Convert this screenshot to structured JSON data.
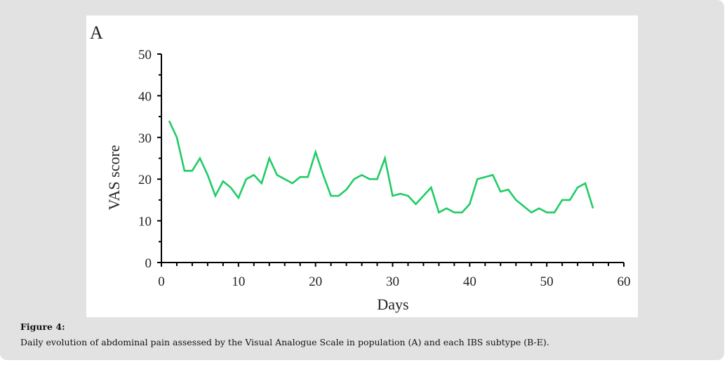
{
  "chart_data": {
    "type": "line",
    "panel_label": "A",
    "title": "",
    "xlabel": "Days",
    "ylabel": "VAS score",
    "xlim": [
      0,
      60
    ],
    "ylim": [
      0,
      50
    ],
    "xticks": [
      0,
      10,
      20,
      30,
      40,
      50,
      60
    ],
    "yticks": [
      0,
      10,
      20,
      30,
      40,
      50
    ],
    "x_minor_step": 2,
    "y_minor_step": 5,
    "grid": false,
    "line_color": "#1fcc66",
    "series": [
      {
        "name": "VAS score",
        "x": [
          1,
          2,
          3,
          4,
          5,
          6,
          7,
          8,
          9,
          10,
          11,
          12,
          13,
          14,
          15,
          16,
          17,
          18,
          19,
          20,
          21,
          22,
          23,
          24,
          25,
          26,
          27,
          28,
          29,
          30,
          31,
          32,
          33,
          34,
          35,
          36,
          37,
          38,
          39,
          40,
          41,
          42,
          43,
          44,
          45,
          46,
          47,
          48,
          49,
          50,
          51,
          52,
          53,
          54,
          55,
          56
        ],
        "values": [
          34,
          30,
          22,
          22,
          25,
          21,
          16,
          19.5,
          18,
          15.5,
          20,
          21,
          19,
          25,
          21,
          20,
          19,
          20.5,
          20.5,
          26.5,
          21,
          16,
          16,
          17.5,
          20,
          21,
          20,
          20,
          25,
          16,
          16.5,
          16,
          14,
          16,
          18,
          12,
          13,
          12,
          12,
          14,
          20,
          20.5,
          21,
          17,
          17.5,
          15,
          13.5,
          12,
          13,
          12,
          12,
          15,
          15,
          18,
          19,
          13
        ]
      }
    ]
  },
  "caption": {
    "title": "Figure 4:",
    "text": "Daily evolution of abdominal pain assessed by the Visual Analogue Scale in population (A) and each IBS subtype (B-E)."
  }
}
